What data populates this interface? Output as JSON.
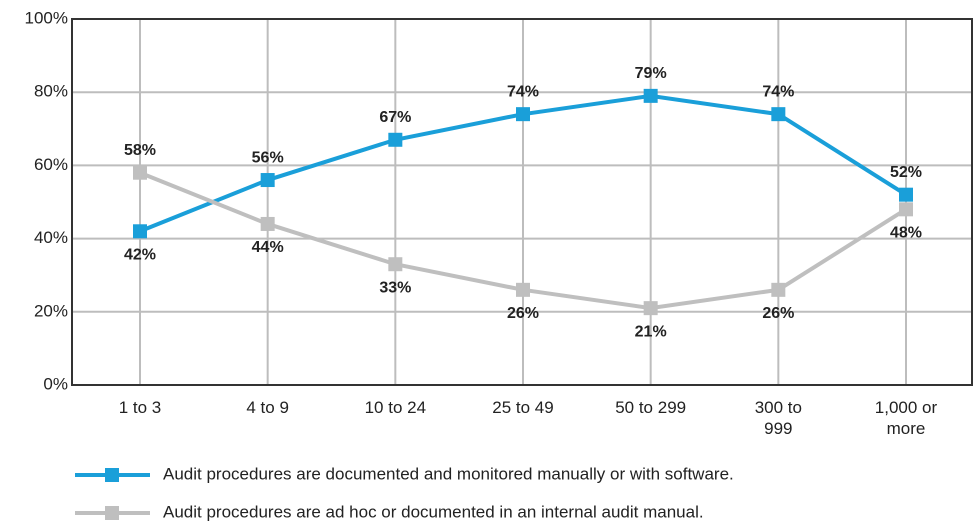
{
  "chart_data": {
    "type": "line",
    "categories": [
      "1 to 3",
      "4 to 9",
      "10 to 24",
      "25 to 49",
      "50 to 299",
      "300 to 999",
      "1,000 or more"
    ],
    "series": [
      {
        "name": "Audit procedures are documented and monitored manually or with software.",
        "color": "#1a9fd9",
        "values": [
          42,
          56,
          67,
          74,
          79,
          74,
          52
        ],
        "value_labels": [
          "42%",
          "56%",
          "67%",
          "74%",
          "79%",
          "74%",
          "52%"
        ]
      },
      {
        "name": "Audit procedures are ad hoc or documented in an internal audit manual.",
        "color": "#bfbfbf",
        "values": [
          58,
          44,
          33,
          26,
          21,
          26,
          48
        ],
        "value_labels": [
          "58%",
          "44%",
          "33%",
          "26%",
          "21%",
          "26%",
          "48%"
        ]
      }
    ],
    "ylim": [
      0,
      100
    ],
    "yticks": [
      {
        "value": 0,
        "label": "0%"
      },
      {
        "value": 20,
        "label": "20%"
      },
      {
        "value": 40,
        "label": "40%"
      },
      {
        "value": 60,
        "label": "60%"
      },
      {
        "value": 80,
        "label": "80%"
      },
      {
        "value": 100,
        "label": "100%"
      }
    ],
    "grid": true,
    "legend": "bottom"
  }
}
